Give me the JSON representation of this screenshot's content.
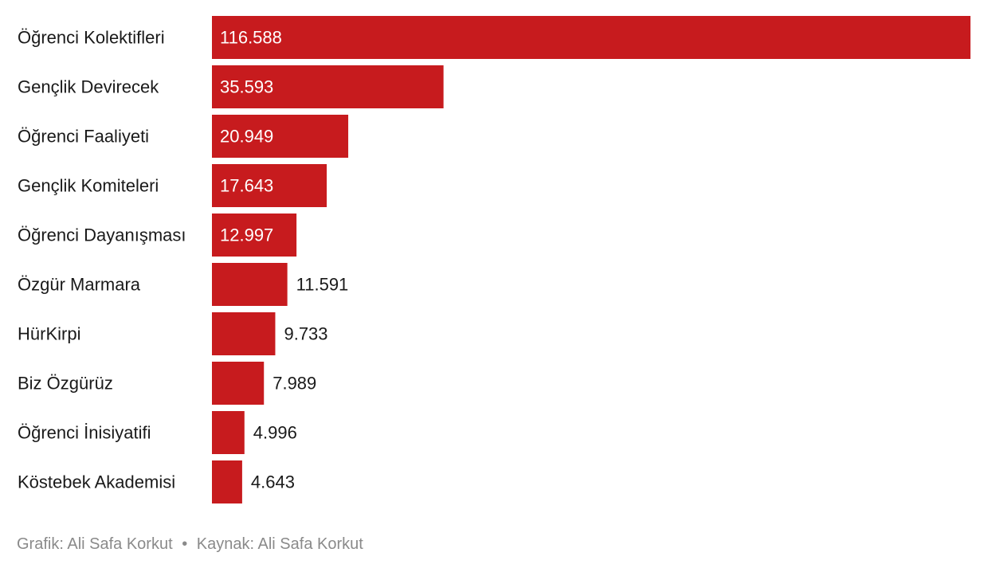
{
  "chart_data": {
    "type": "bar",
    "orientation": "horizontal",
    "categories": [
      "Öğrenci Kolektifleri",
      "Gençlik Devirecek",
      "Öğrenci Faaliyeti",
      "Gençlik Komiteleri",
      "Öğrenci Dayanışması",
      "Özgür Marmara",
      "HürKirpi",
      "Biz Özgürüz",
      "Öğrenci İnisiyatifi",
      "Köstebek Akademisi"
    ],
    "values": [
      116588,
      35593,
      20949,
      17643,
      12997,
      11591,
      9733,
      7989,
      4996,
      4643
    ],
    "value_labels": [
      "116.588",
      "35.593",
      "20.949",
      "17.643",
      "12.997",
      "11.591",
      "9.733",
      "7.989",
      "4.996",
      "4.643"
    ],
    "bar_color": "#c71b1e",
    "inside_label_color": "#ffffff",
    "outside_label_color": "#1a1a1a",
    "xlim": [
      0,
      116588
    ],
    "grid": false,
    "legend": "none"
  },
  "footer": {
    "graphic_label": "Grafik:",
    "graphic_author": "Ali Safa Korkut",
    "separator": "•",
    "source_label": "Kaynak:",
    "source_author": "Ali Safa Korkut"
  }
}
